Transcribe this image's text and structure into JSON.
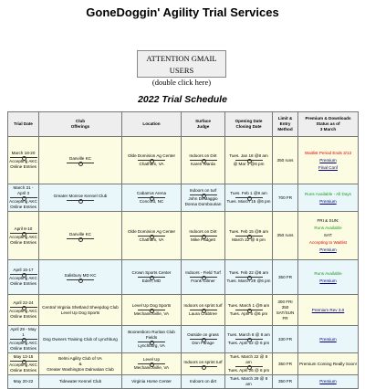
{
  "header": {
    "title": "GoneDoggin' Agility Trial Services",
    "button": [
      "ATTENTION GMAIL USERS",
      "(double click here)"
    ],
    "subtitle": "2022 Trial Schedule"
  },
  "table": {
    "headers": [
      [
        "Trial Date"
      ],
      [
        "Club",
        "Offerings"
      ],
      [
        "Location"
      ],
      [
        "Surface",
        "Judge"
      ],
      [
        "Opening Date",
        "Closing Date"
      ],
      [
        "Limit &",
        "Entry",
        "Method"
      ],
      [
        "Premium & Downloads",
        "Status as of",
        "3 March"
      ]
    ],
    "rows": [
      {
        "cells": [
          [
            [
              "March 18-20"
            ],
            [
              "Accepting AKC",
              "Online Entries"
            ]
          ],
          [
            [
              "Danville KC"
            ],
            []
          ],
          [
            [
              "Olde Dominion Ag Center"
            ],
            [
              "Chatham, VA"
            ]
          ],
          [
            [
              "Indoors on Dirt"
            ],
            [
              "Karen Warda"
            ]
          ],
          [
            [
              "Tues. Jan 18 @8 am"
            ],
            [
              "@ Mar 1 @6 pm"
            ]
          ],
          [
            [
              "350 runs"
            ]
          ],
          [
            [
              {
                "text": "Waitlist Period Ends 3/13",
                "color": "#e00000"
              },
              {
                "text": "Premium",
                "link": true
              },
              {
                "text": "Final Conf",
                "link": true
              }
            ]
          ]
        ]
      },
      {
        "cells": [
          [
            [
              "March 31 - April 3"
            ],
            [
              "Accepting AKC",
              "Online Entries"
            ]
          ],
          [
            [
              "Greater Monroe Kennel Club"
            ],
            []
          ],
          [
            [
              "Cabarrus Arena"
            ],
            [
              "Concord, NC"
            ]
          ],
          [
            [
              "Indoors on turf"
            ],
            [
              "John DeMaggio",
              "Donna Dombourian"
            ]
          ],
          [
            [
              "Tues. Feb 1 @8 am"
            ],
            [
              "Tues. March 15 @6 pm"
            ]
          ],
          [
            [
              "700 FR"
            ]
          ],
          [
            [
              {
                "text": "Runs Available - All Days",
                "color": "#1a9a1a"
              },
              {
                "text": "Premium",
                "link": true
              }
            ]
          ]
        ]
      },
      {
        "cells": [
          [
            [
              "April 8-10"
            ],
            [
              "Accepting AKC",
              "Online Entries"
            ]
          ],
          [
            [
              "Danville KC"
            ],
            []
          ],
          [
            [
              "Olde Dominion Ag Center"
            ],
            [
              "Chatham, VA"
            ]
          ],
          [
            [
              "Indoors on Dirt"
            ],
            [
              "Mike Padgett"
            ]
          ],
          [
            [
              "Tues. Feb 15 @9 am"
            ],
            [
              "March 22 @ 6 pm"
            ]
          ],
          [
            [
              "350 runs"
            ]
          ],
          [
            [
              {
                "text": "FRI & SUN:"
              },
              {
                "text": "Runs Available",
                "color": "#1a9a1a"
              },
              {
                "text": "SAT:"
              },
              {
                "text": "Accepting to Waitlist",
                "color": "#e00000"
              },
              {
                "text": "Premium",
                "link": true
              }
            ]
          ]
        ]
      },
      {
        "cells": [
          [
            [
              "April 15-17"
            ],
            [
              "Accepting AKC",
              "Online Entries"
            ]
          ],
          [
            [
              "Salisbury MD KC"
            ],
            []
          ],
          [
            [
              "Crown Sports Center"
            ],
            [
              "Eden, MD"
            ]
          ],
          [
            [
              "Indoors - Field Turf"
            ],
            [
              "Frank Gilmer"
            ]
          ],
          [
            [
              "Tues. Feb 22 @8 am"
            ],
            [
              "Tues. March 29 @6 pm"
            ]
          ],
          [
            [
              "350 FR"
            ]
          ],
          [
            [
              {
                "text": "Runs Available",
                "color": "#1a9a1a"
              },
              {
                "text": "Premium",
                "link": true
              }
            ]
          ]
        ]
      },
      {
        "cells": [
          [
            [
              "April 22-24"
            ],
            [
              "Accepting AKC",
              "Online Entries"
            ]
          ],
          [
            [
              "Central Virginia Shetland Sheepdog Club",
              "Level Up Dog Sports"
            ]
          ],
          [
            [
              "Level Up Dog Sports"
            ],
            [
              "Mechanicsville, VA"
            ]
          ],
          [
            [
              "Indoors on sprint turf"
            ],
            [
              "Laura Crabtree"
            ]
          ],
          [
            [
              "Tues. March 1 @9 am"
            ],
            [
              "Tues. April 5 @6 pm"
            ]
          ],
          [
            [
              "300 FRI",
              "350 SAT/SUN",
              "FR"
            ]
          ],
          [
            [
              {
                "text": "Premium Rev 3.0",
                "link": true
              }
            ]
          ]
        ]
      },
      {
        "cells": [
          [
            [
              "April 29 - May 1"
            ],
            [
              "Accepting AKC",
              "Online Entries"
            ]
          ],
          [
            [
              "Dog Owners Training Club of Lynchburg"
            ]
          ],
          [
            [
              "Boonesboro Ruritan Club Fields"
            ],
            [
              "Lynchburg, VA"
            ]
          ],
          [
            [
              "Outside on grass"
            ],
            [
              "Don Farage"
            ]
          ],
          [
            [
              "Tues. March 8 @ 8 am"
            ],
            [
              "Tues. April 12 @ 6 pm"
            ]
          ],
          [
            [
              "330 FR"
            ]
          ],
          [
            [
              {
                "text": "Premium",
                "link": true
              }
            ]
          ]
        ]
      },
      {
        "cells": [
          [
            [
              "May 13-15"
            ],
            [
              "Accepting AKC",
              "Online Entries"
            ]
          ],
          [
            [
              "Belmi Agility Club of VA",
              "&",
              "Greater Washington Dalmatian Club"
            ]
          ],
          [
            [
              "Level Up"
            ],
            [
              "Mechanicsville, VA"
            ]
          ],
          [
            [
              "Indoors on sprint turf"
            ],
            []
          ],
          [
            [
              "Tues. March 22 @ 8 am"
            ],
            [
              "Tues. April 26 @ 6 pm"
            ]
          ],
          [
            [
              "350 FR"
            ]
          ],
          [
            [
              {
                "text": "Premium Coming Really Soon!"
              }
            ]
          ]
        ]
      },
      {
        "cells": [
          [
            [
              "May 20-22"
            ]
          ],
          [
            [
              "Tidewater Kennel Club"
            ]
          ],
          [
            [
              "Virginia Horse Center"
            ]
          ],
          [
            [
              "Indoors on dirt"
            ]
          ],
          [
            [
              "Tues. March 29 @ 8 am"
            ]
          ],
          [
            [
              "350 FR"
            ]
          ],
          [
            [
              {
                "text": "Premium",
                "link": true
              }
            ]
          ]
        ]
      }
    ]
  }
}
